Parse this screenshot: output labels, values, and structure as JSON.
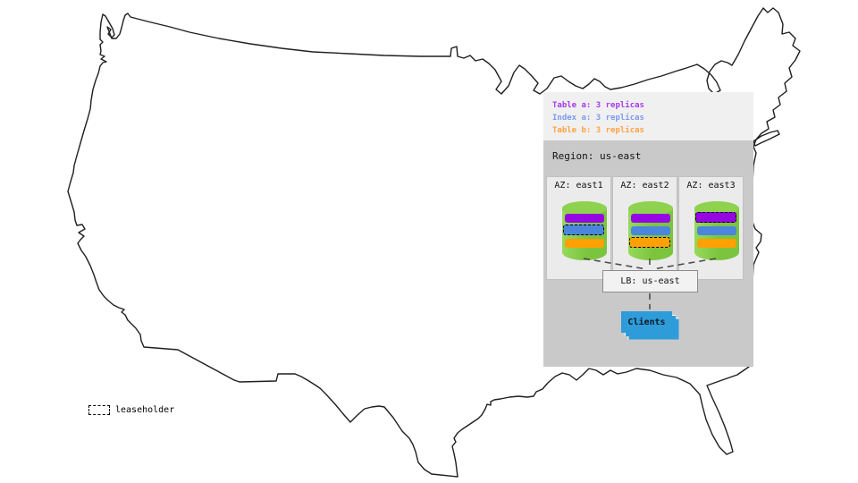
{
  "colors": {
    "map_stroke": "#1f1f1f",
    "legend_bg": "#f0f0f0",
    "region_bg": "#c9c9c9",
    "az_bg": "#ebebeb",
    "az_border": "#c0c0c0",
    "cylinder_body": "#7cc43e",
    "cylinder_body_light": "#97d95b",
    "cylinder_top": "#8ed24f",
    "lb_bg": "#f2f2f2",
    "lb_border": "#8c8c8c",
    "clients_bg": "#2e9cd9",
    "connector": "#4d4d4d"
  },
  "legend": {
    "lines": [
      {
        "label": "Table a: 3 replicas",
        "color": "#a53bea"
      },
      {
        "label": "Index a: 3 replicas",
        "color": "#7d9aef"
      },
      {
        "label": "Table b: 3 replicas",
        "color": "#ffa143"
      }
    ]
  },
  "region": {
    "title": "Region: us-east",
    "azs": [
      {
        "label": "AZ: east1",
        "replicas": [
          {
            "name": "table-a",
            "color": "#9406e2",
            "leaseholder": false
          },
          {
            "name": "index-a",
            "color": "#4c85dc",
            "leaseholder": true
          },
          {
            "name": "table-b",
            "color": "#ffa004",
            "leaseholder": false
          }
        ]
      },
      {
        "label": "AZ: east2",
        "replicas": [
          {
            "name": "table-a",
            "color": "#9406e2",
            "leaseholder": false
          },
          {
            "name": "index-a",
            "color": "#4c85dc",
            "leaseholder": false
          },
          {
            "name": "table-b",
            "color": "#ffa004",
            "leaseholder": true
          }
        ]
      },
      {
        "label": "AZ: east3",
        "replicas": [
          {
            "name": "table-a",
            "color": "#9406e2",
            "leaseholder": true
          },
          {
            "name": "index-a",
            "color": "#4c85dc",
            "leaseholder": false
          },
          {
            "name": "table-b",
            "color": "#ffa004",
            "leaseholder": false
          }
        ]
      }
    ]
  },
  "lb": {
    "label": "LB: us-east"
  },
  "clients": {
    "label": "Clients"
  },
  "map_legend": {
    "leaseholder_label": "leaseholder"
  }
}
